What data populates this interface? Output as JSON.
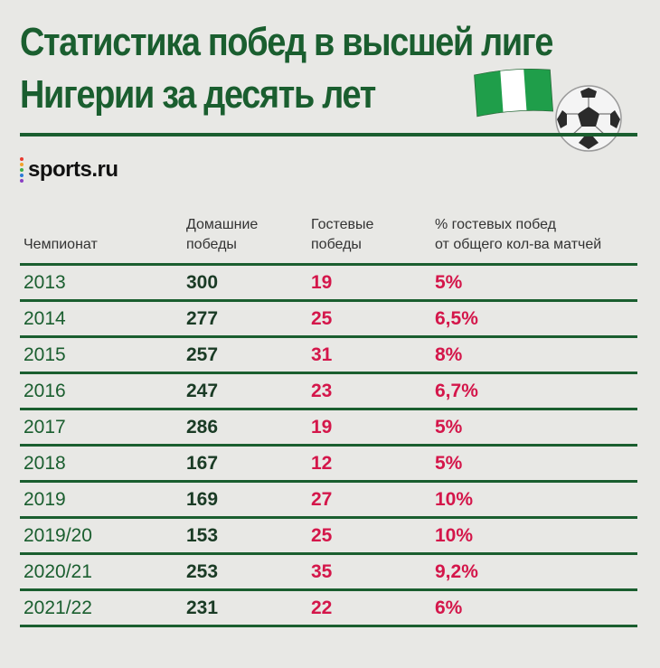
{
  "title_line1": "Статистика побед в высшей лиге",
  "title_line2": "Нигерии за десять лет",
  "logo_text": "sports.ru",
  "colors": {
    "green": "#1a5e2f",
    "red": "#d4164a",
    "flag_green": "#1f9e4a"
  },
  "chart_data": {
    "type": "table",
    "title": "Статистика побед в высшей лиге Нигерии за десять лет",
    "columns": [
      "Чемпионат",
      "Домашние победы",
      "Гостевые победы",
      "% гостевых побед от общего кол-ва матчей"
    ],
    "header": {
      "season": "Чемпионат",
      "home_1": "Домашние",
      "home_2": "победы",
      "away_1": "Гостевые",
      "away_2": "победы",
      "pct_1": "% гостевых побед",
      "pct_2": "от общего кол-ва матчей"
    },
    "rows": [
      {
        "season": "2013",
        "home": "300",
        "away": "19",
        "pct": "5%"
      },
      {
        "season": "2014",
        "home": "277",
        "away": "25",
        "pct": "6,5%"
      },
      {
        "season": "2015",
        "home": "257",
        "away": "31",
        "pct": "8%"
      },
      {
        "season": "2016",
        "home": "247",
        "away": "23",
        "pct": "6,7%"
      },
      {
        "season": "2017",
        "home": "286",
        "away": "19",
        "pct": "5%"
      },
      {
        "season": "2018",
        "home": "167",
        "away": "12",
        "pct": "5%"
      },
      {
        "season": "2019",
        "home": "169",
        "away": "27",
        "pct": "10%"
      },
      {
        "season": "2019/20",
        "home": "153",
        "away": "25",
        "pct": "10%"
      },
      {
        "season": "2020/21",
        "home": "253",
        "away": "35",
        "pct": "9,2%"
      },
      {
        "season": "2021/22",
        "home": "231",
        "away": "22",
        "pct": "6%"
      }
    ]
  }
}
